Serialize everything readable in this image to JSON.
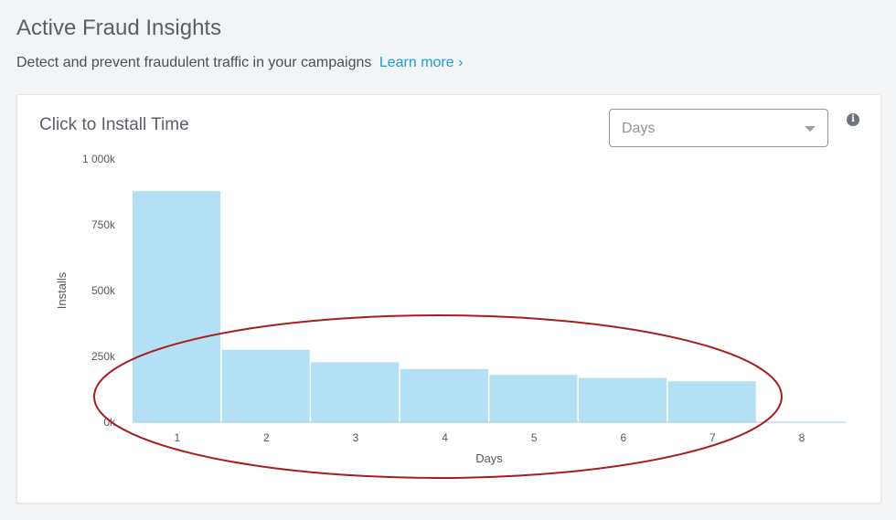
{
  "header": {
    "title": "Active Fraud Insights",
    "subtitle": "Detect and prevent fraudulent traffic in your campaigns",
    "learn_more": "Learn more ›"
  },
  "card": {
    "title": "Click to Install Time",
    "select_value": "Days"
  },
  "colors": {
    "bar": "#b3e0f4",
    "axis": "#9fcde3",
    "annotation": "#a81d1d",
    "link": "#1f9bd1"
  },
  "icons": {
    "info": "info-icon",
    "dropdown": "chevron-down-icon"
  },
  "chart_data": {
    "type": "bar",
    "categories": [
      "1",
      "2",
      "3",
      "4",
      "5",
      "6",
      "7",
      "8"
    ],
    "values": [
      878000,
      275000,
      228000,
      202000,
      180000,
      168000,
      155000,
      2000
    ],
    "xlabel": "Days",
    "ylabel": "Installs",
    "ylim": [
      0,
      1000000
    ],
    "yticks": [
      {
        "value": 0,
        "label": "0k"
      },
      {
        "value": 250000,
        "label": "250k"
      },
      {
        "value": 500000,
        "label": "500k"
      },
      {
        "value": 750000,
        "label": "750k"
      },
      {
        "value": 1000000,
        "label": "1 000k"
      }
    ],
    "grid": false,
    "annotation": "ellipse around days 2–7"
  }
}
